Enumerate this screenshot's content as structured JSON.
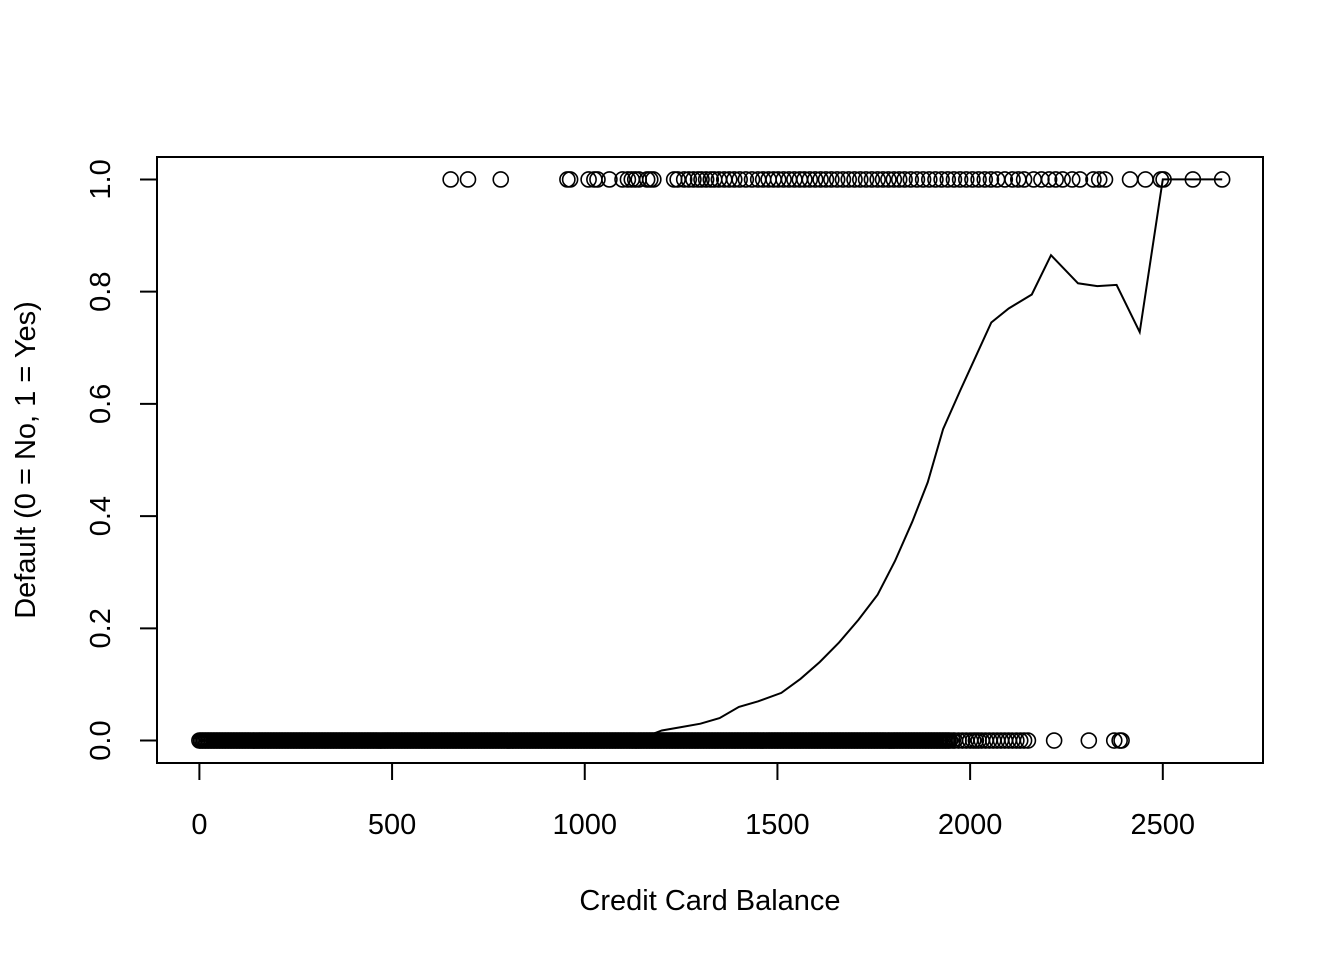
{
  "chart_data": {
    "type": "scatter",
    "title": "",
    "xlabel": "Credit Card Balance",
    "ylabel": "Default (0 = No, 1 = Yes)",
    "xlim": [
      -110,
      2760
    ],
    "ylim": [
      -0.04,
      1.04
    ],
    "x_ticks": [
      0,
      500,
      1000,
      1500,
      2000,
      2500
    ],
    "x_tick_labels": [
      "0",
      "500",
      "1000",
      "1500",
      "2000",
      "2500"
    ],
    "y_ticks": [
      0.0,
      0.2,
      0.4,
      0.6,
      0.8,
      1.0
    ],
    "y_tick_labels": [
      "0.0",
      "0.2",
      "0.4",
      "0.6",
      "0.8",
      "1.0"
    ],
    "grid": false,
    "points_y1": [
      652,
      697,
      782,
      955,
      962,
      1010,
      1025,
      1033,
      1064,
      1098,
      1112,
      1122,
      1131,
      1140,
      1162,
      1170,
      1178,
      1232,
      1241,
      1258,
      1270,
      1282,
      1294,
      1303,
      1315,
      1327,
      1336,
      1348,
      1362,
      1375,
      1388,
      1402,
      1418,
      1434,
      1450,
      1463,
      1477,
      1490,
      1502,
      1516,
      1530,
      1544,
      1558,
      1570,
      1584,
      1598,
      1612,
      1626,
      1640,
      1655,
      1670,
      1685,
      1700,
      1715,
      1730,
      1745,
      1760,
      1774,
      1788,
      1802,
      1816,
      1830,
      1846,
      1862,
      1878,
      1894,
      1910,
      1926,
      1942,
      1958,
      1974,
      1990,
      2006,
      2022,
      2038,
      2054,
      2070,
      2090,
      2110,
      2125,
      2140,
      2165,
      2185,
      2205,
      2222,
      2240,
      2265,
      2285,
      2320,
      2335,
      2350,
      2415,
      2455,
      2495,
      2502,
      2578,
      2654
    ],
    "points_y0_dense_range": [
      0,
      1950
    ],
    "points_y0_sparse": [
      1955,
      1960,
      1970,
      1980,
      1990,
      2000,
      2008,
      2015,
      2022,
      2030,
      2040,
      2050,
      2060,
      2070,
      2080,
      2090,
      2100,
      2110,
      2120,
      2130,
      2140,
      2150,
      2218,
      2308,
      2374,
      2388,
      2393
    ],
    "fitted_line": {
      "x": [
        0,
        200,
        400,
        600,
        800,
        1000,
        1150,
        1200,
        1250,
        1300,
        1350,
        1400,
        1450,
        1510,
        1560,
        1610,
        1660,
        1710,
        1760,
        1805,
        1850,
        1890,
        1930,
        1975,
        2015,
        2055,
        2100,
        2160,
        2210,
        2280,
        2330,
        2380,
        2440,
        2500,
        2545,
        2600,
        2654
      ],
      "y": [
        0.0,
        0.0,
        0.0,
        0.0,
        0.0,
        0.0,
        0.005,
        0.018,
        0.024,
        0.03,
        0.04,
        0.06,
        0.07,
        0.085,
        0.11,
        0.14,
        0.175,
        0.215,
        0.26,
        0.32,
        0.39,
        0.46,
        0.555,
        0.625,
        0.685,
        0.745,
        0.77,
        0.795,
        0.865,
        0.815,
        0.81,
        0.812,
        0.728,
        1.0,
        1.0,
        1.0,
        1.0
      ]
    }
  }
}
